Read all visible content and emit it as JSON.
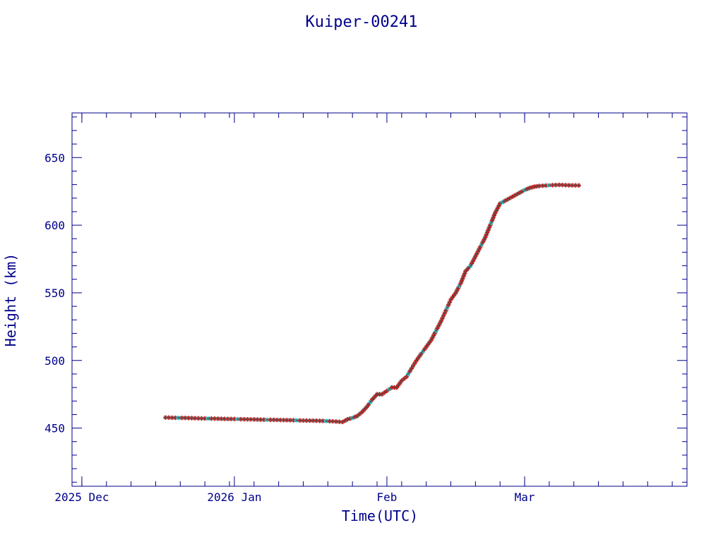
{
  "chart_data": {
    "type": "scatter",
    "title": "Kuiper-00241",
    "xlabel": "Time(UTC)",
    "ylabel": "Height (km)",
    "x_tick_labels": [
      {
        "date": "2025-12-01",
        "label": "2025 Dec"
      },
      {
        "date": "2026-01-01",
        "label": "2026 Jan"
      },
      {
        "date": "2026-02-01",
        "label": "Feb"
      },
      {
        "date": "2026-03-01",
        "label": "Mar"
      }
    ],
    "y_ticks": [
      450,
      500,
      550,
      600,
      650
    ],
    "xlim": [
      "2025-11-29",
      "2026-04-03"
    ],
    "ylim": [
      407,
      683
    ],
    "grid": false,
    "colors": {
      "axes": "#00008b",
      "primary_marker": "#dd0000",
      "secondary_marker": "#00e5ee",
      "marker_edge": "#555555"
    },
    "series": [
      {
        "points": [
          [
            "2025-12-18",
            457.8
          ],
          [
            "2025-12-20",
            457.6
          ],
          [
            "2025-12-22",
            457.5
          ],
          [
            "2025-12-24",
            457.3
          ],
          [
            "2025-12-26",
            457.1
          ],
          [
            "2025-12-28",
            457.0
          ],
          [
            "2025-12-30",
            456.8
          ],
          [
            "2026-01-01",
            456.7
          ],
          [
            "2026-01-03",
            456.5
          ],
          [
            "2026-01-05",
            456.4
          ],
          [
            "2026-01-07",
            456.2
          ],
          [
            "2026-01-09",
            456.1
          ],
          [
            "2026-01-11",
            455.9
          ],
          [
            "2026-01-13",
            455.8
          ],
          [
            "2026-01-15",
            455.6
          ],
          [
            "2026-01-17",
            455.5
          ],
          [
            "2026-01-19",
            455.3
          ],
          [
            "2026-01-21",
            455.0
          ],
          [
            "2026-01-23",
            454.5
          ],
          [
            "2026-01-24",
            456.5
          ],
          [
            "2026-01-25",
            457.5
          ],
          [
            "2026-01-26",
            459.0
          ],
          [
            "2026-01-27",
            462.0
          ],
          [
            "2026-01-28",
            466.0
          ],
          [
            "2026-01-29",
            471.0
          ],
          [
            "2026-01-30",
            475.0
          ],
          [
            "2026-01-31",
            475.0
          ],
          [
            "2026-02-02",
            480.0
          ],
          [
            "2026-02-03",
            480.0
          ],
          [
            "2026-02-04",
            485.0
          ],
          [
            "2026-02-05",
            488.0
          ],
          [
            "2026-02-06",
            494.0
          ],
          [
            "2026-02-07",
            500.0
          ],
          [
            "2026-02-08",
            505.0
          ],
          [
            "2026-02-09",
            510.0
          ],
          [
            "2026-02-10",
            515.0
          ],
          [
            "2026-02-11",
            522.0
          ],
          [
            "2026-02-12",
            529.0
          ],
          [
            "2026-02-13",
            537.0
          ],
          [
            "2026-02-14",
            545.0
          ],
          [
            "2026-02-15",
            550.0
          ],
          [
            "2026-02-16",
            557.0
          ],
          [
            "2026-02-17",
            566.0
          ],
          [
            "2026-02-18",
            570.0
          ],
          [
            "2026-02-19",
            577.0
          ],
          [
            "2026-02-20",
            584.0
          ],
          [
            "2026-02-21",
            591.0
          ],
          [
            "2026-02-22",
            600.0
          ],
          [
            "2026-02-23",
            609.0
          ],
          [
            "2026-02-24",
            616.0
          ],
          [
            "2026-02-25",
            618.0
          ],
          [
            "2026-02-26",
            620.0
          ],
          [
            "2026-02-27",
            622.0
          ],
          [
            "2026-02-28",
            624.0
          ],
          [
            "2026-03-01",
            626.0
          ],
          [
            "2026-03-02",
            627.5
          ],
          [
            "2026-03-03",
            628.5
          ],
          [
            "2026-03-04",
            629.0
          ],
          [
            "2026-03-06",
            629.5
          ],
          [
            "2026-03-08",
            629.8
          ],
          [
            "2026-03-10",
            629.5
          ],
          [
            "2026-03-12",
            629.4
          ]
        ]
      }
    ]
  }
}
